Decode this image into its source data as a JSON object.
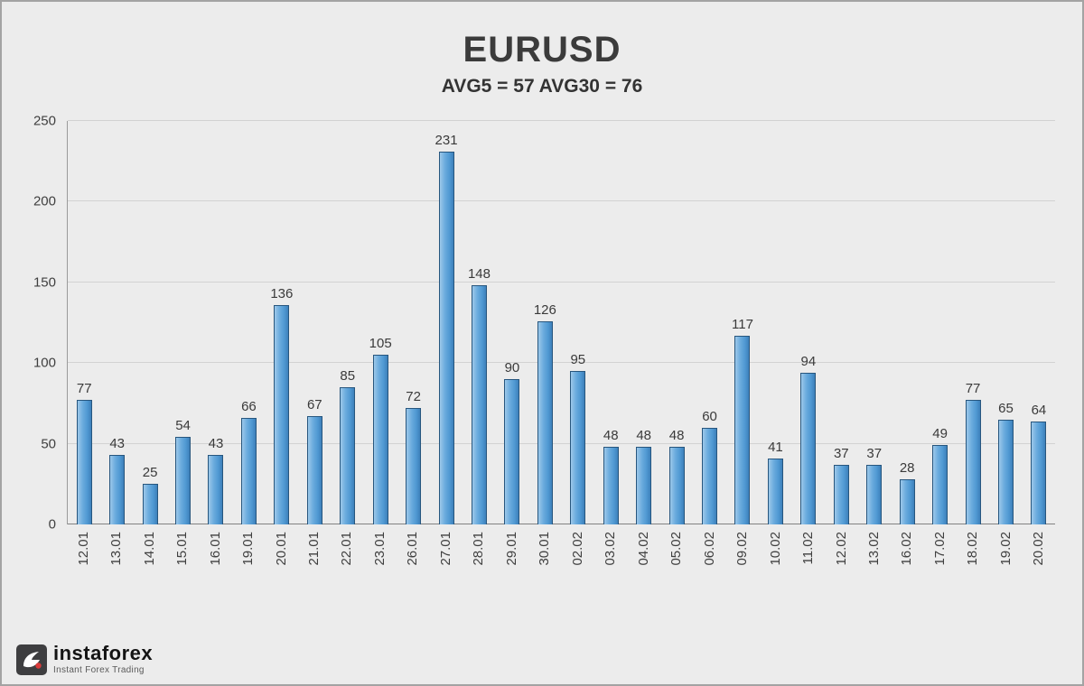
{
  "chart_data": {
    "type": "bar",
    "title": "EURUSD",
    "subtitle": "AVG5 = 57 AVG30 = 76",
    "categories": [
      "12.01",
      "13.01",
      "14.01",
      "15.01",
      "16.01",
      "19.01",
      "20.01",
      "21.01",
      "22.01",
      "23.01",
      "26.01",
      "27.01",
      "28.01",
      "29.01",
      "30.01",
      "02.02",
      "03.02",
      "04.02",
      "05.02",
      "06.02",
      "09.02",
      "10.02",
      "11.02",
      "12.02",
      "13.02",
      "16.02",
      "17.02",
      "18.02",
      "19.02",
      "20.02"
    ],
    "values": [
      77,
      43,
      25,
      54,
      43,
      66,
      136,
      67,
      85,
      105,
      72,
      231,
      148,
      90,
      126,
      95,
      48,
      48,
      48,
      60,
      117,
      41,
      94,
      37,
      37,
      28,
      49,
      77,
      65,
      64
    ],
    "xlabel": "",
    "ylabel": "",
    "ylim": [
      0,
      250
    ],
    "yticks": [
      0,
      50,
      100,
      150,
      200,
      250
    ],
    "grid": true,
    "legend": "none",
    "bar_color": "#5b9bd5",
    "bar_border_color": "#27567e"
  },
  "logo": {
    "name": "instaforex",
    "tagline": "Instant Forex Trading"
  }
}
